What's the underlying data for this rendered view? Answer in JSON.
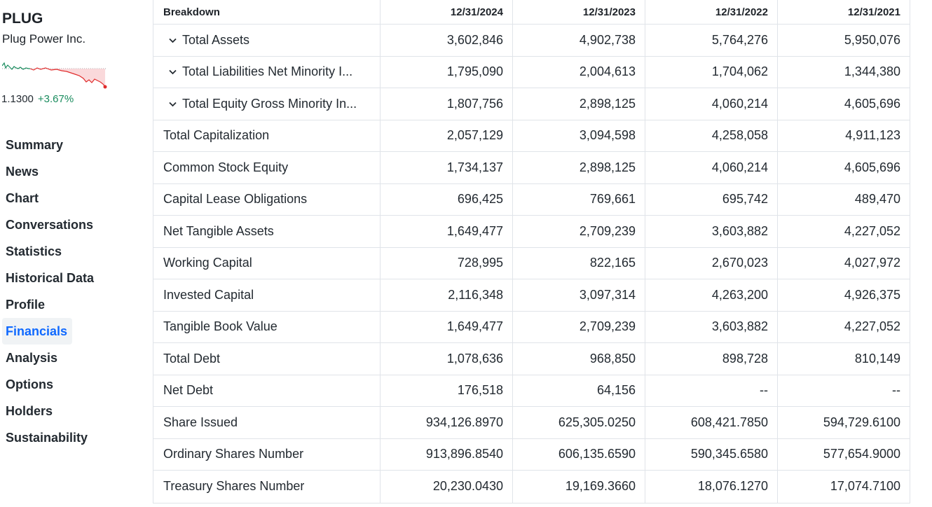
{
  "ticker": {
    "symbol": "PLUG",
    "company_name": "Plug Power Inc.",
    "price": "1.1300",
    "change": "+3.67%",
    "market_state_icon": "moon-icon",
    "colors": {
      "positive": "#1a8c5e",
      "negative": "#e02d2d",
      "accent": "#0f69ff"
    }
  },
  "nav": {
    "items": [
      {
        "label": "Summary"
      },
      {
        "label": "News"
      },
      {
        "label": "Chart"
      },
      {
        "label": "Conversations"
      },
      {
        "label": "Statistics"
      },
      {
        "label": "Historical Data"
      },
      {
        "label": "Profile"
      },
      {
        "label": "Financials"
      },
      {
        "label": "Analysis"
      },
      {
        "label": "Options"
      },
      {
        "label": "Holders"
      },
      {
        "label": "Sustainability"
      }
    ],
    "active": "Financials"
  },
  "table": {
    "headers": [
      "Breakdown",
      "12/31/2024",
      "12/31/2023",
      "12/31/2022",
      "12/31/2021"
    ],
    "rows": [
      {
        "label": "Total Assets",
        "expandable": true,
        "values": [
          "3,602,846",
          "4,902,738",
          "5,764,276",
          "5,950,076"
        ]
      },
      {
        "label": "Total Liabilities Net Minority I...",
        "expandable": true,
        "values": [
          "1,795,090",
          "2,004,613",
          "1,704,062",
          "1,344,380"
        ]
      },
      {
        "label": "Total Equity Gross Minority In...",
        "expandable": true,
        "values": [
          "1,807,756",
          "2,898,125",
          "4,060,214",
          "4,605,696"
        ]
      },
      {
        "label": "Total Capitalization",
        "expandable": false,
        "values": [
          "2,057,129",
          "3,094,598",
          "4,258,058",
          "4,911,123"
        ]
      },
      {
        "label": "Common Stock Equity",
        "expandable": false,
        "values": [
          "1,734,137",
          "2,898,125",
          "4,060,214",
          "4,605,696"
        ]
      },
      {
        "label": "Capital Lease Obligations",
        "expandable": false,
        "values": [
          "696,425",
          "769,661",
          "695,742",
          "489,470"
        ]
      },
      {
        "label": "Net Tangible Assets",
        "expandable": false,
        "values": [
          "1,649,477",
          "2,709,239",
          "3,603,882",
          "4,227,052"
        ]
      },
      {
        "label": "Working Capital",
        "expandable": false,
        "values": [
          "728,995",
          "822,165",
          "2,670,023",
          "4,027,972"
        ]
      },
      {
        "label": "Invested Capital",
        "expandable": false,
        "values": [
          "2,116,348",
          "3,097,314",
          "4,263,200",
          "4,926,375"
        ]
      },
      {
        "label": "Tangible Book Value",
        "expandable": false,
        "values": [
          "1,649,477",
          "2,709,239",
          "3,603,882",
          "4,227,052"
        ]
      },
      {
        "label": "Total Debt",
        "expandable": false,
        "values": [
          "1,078,636",
          "968,850",
          "898,728",
          "810,149"
        ]
      },
      {
        "label": "Net Debt",
        "expandable": false,
        "values": [
          "176,518",
          "64,156",
          "--",
          "--"
        ]
      },
      {
        "label": "Share Issued",
        "expandable": false,
        "values": [
          "934,126.8970",
          "625,305.0250",
          "608,421.7850",
          "594,729.6100"
        ]
      },
      {
        "label": "Ordinary Shares Number",
        "expandable": false,
        "values": [
          "913,896.8540",
          "606,135.6590",
          "590,345.6580",
          "577,654.9000"
        ]
      },
      {
        "label": "Treasury Shares Number",
        "expandable": false,
        "values": [
          "20,230.0430",
          "19,169.3660",
          "18,076.1270",
          "17,074.7100"
        ]
      }
    ]
  }
}
